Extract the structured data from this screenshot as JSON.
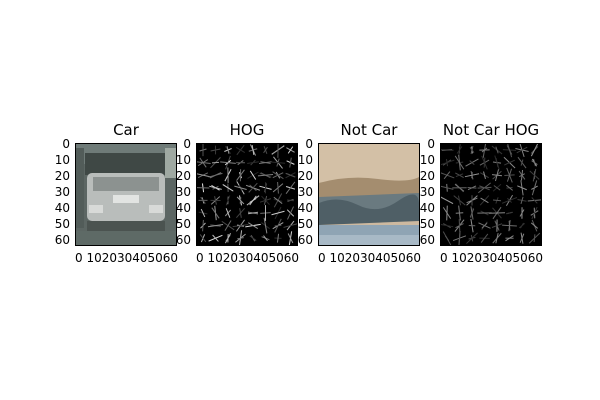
{
  "panels": [
    {
      "title": "Car"
    },
    {
      "title": "HOG"
    },
    {
      "title": "Not Car"
    },
    {
      "title": "Not Car HOG"
    }
  ],
  "axes": {
    "y_ticks": [
      "0",
      "10",
      "20",
      "30",
      "40",
      "50",
      "60"
    ],
    "x_tick_row": "0 102030405060"
  },
  "image_description_icons": [
    "car-image",
    "hog-image",
    "road-scene-image",
    "hog-image"
  ]
}
